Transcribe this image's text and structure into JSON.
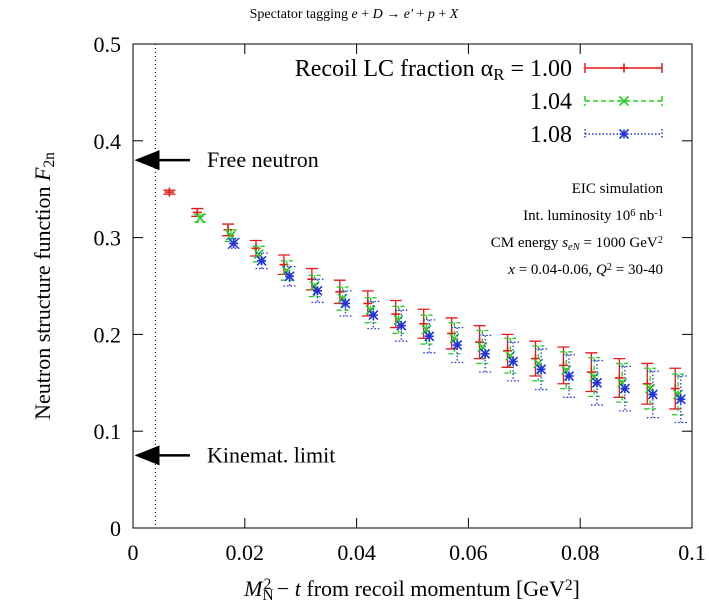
{
  "chart_data": {
    "type": "errorbar",
    "title": [
      {
        "t": "Spectator tagging "
      },
      {
        "t": "e",
        "s": "i"
      },
      {
        "t": " + "
      },
      {
        "t": "D",
        "s": "i"
      },
      {
        "t": " → "
      },
      {
        "t": "e'",
        "s": "i"
      },
      {
        "t": " + "
      },
      {
        "t": "p",
        "s": "i"
      },
      {
        "t": " + "
      },
      {
        "t": "X",
        "s": "i"
      }
    ],
    "x_label": [
      {
        "t": "M",
        "s": "i"
      },
      {
        "t": "N",
        "s": "sub"
      },
      {
        "t": "2",
        "s": "supback"
      },
      {
        "t": " − "
      },
      {
        "t": "t",
        "s": "i"
      },
      {
        "t": "   from recoil momentum   [GeV"
      },
      {
        "t": "2",
        "s": "sup"
      },
      {
        "t": "]"
      }
    ],
    "y_label": [
      {
        "t": "Neutron structure function  "
      },
      {
        "t": "F",
        "s": "i"
      },
      {
        "t": "2n",
        "s": "sub"
      }
    ],
    "legend_prefix": [
      {
        "t": "Recoil LC fraction  α"
      },
      {
        "t": "R",
        "s": "sub"
      },
      {
        "t": " = "
      }
    ],
    "xlim": [
      0,
      0.1
    ],
    "ylim": [
      0,
      0.5
    ],
    "xticks": [
      0,
      0.02,
      0.04,
      0.06,
      0.08,
      0.1
    ],
    "yticks": [
      0,
      0.1,
      0.2,
      0.3,
      0.4,
      0.5
    ],
    "series": [
      {
        "name": "1.00",
        "color": "#e41a1c",
        "marker": "plus",
        "dash": "solid",
        "x": [
          0.0065,
          0.0115,
          0.017,
          0.022,
          0.027,
          0.032,
          0.037,
          0.042,
          0.047,
          0.052,
          0.057,
          0.062,
          0.067,
          0.072,
          0.077,
          0.082,
          0.087,
          0.092,
          0.097
        ],
        "values": [
          0.347,
          0.326,
          0.308,
          0.289,
          0.272,
          0.257,
          0.244,
          0.232,
          0.221,
          0.211,
          0.201,
          0.192,
          0.183,
          0.175,
          0.168,
          0.161,
          0.155,
          0.149,
          0.144
        ],
        "errors": [
          0.002,
          0.004,
          0.006,
          0.008,
          0.01,
          0.011,
          0.012,
          0.013,
          0.014,
          0.015,
          0.016,
          0.017,
          0.017,
          0.018,
          0.019,
          0.02,
          0.02,
          0.021,
          0.021
        ]
      },
      {
        "name": "1.04",
        "color": "#22cc22",
        "marker": "cross",
        "dash": "dashed",
        "x": [
          0.012,
          0.0175,
          0.0225,
          0.0275,
          0.0325,
          0.0375,
          0.0425,
          0.0475,
          0.0525,
          0.0575,
          0.0625,
          0.0675,
          0.0725,
          0.0775,
          0.0825,
          0.0875,
          0.0925,
          0.0975
        ],
        "values": [
          0.32,
          0.302,
          0.283,
          0.266,
          0.25,
          0.237,
          0.225,
          0.215,
          0.205,
          0.196,
          0.187,
          0.178,
          0.17,
          0.163,
          0.156,
          0.15,
          0.144,
          0.138
        ],
        "errors": [
          0.004,
          0.006,
          0.008,
          0.01,
          0.011,
          0.012,
          0.013,
          0.014,
          0.015,
          0.016,
          0.017,
          0.018,
          0.018,
          0.019,
          0.02,
          0.02,
          0.021,
          0.021
        ]
      },
      {
        "name": "1.08",
        "color": "#2233dd",
        "marker": "star",
        "dash": "dotted",
        "x": [
          0.018,
          0.023,
          0.028,
          0.033,
          0.038,
          0.043,
          0.048,
          0.053,
          0.058,
          0.063,
          0.068,
          0.073,
          0.078,
          0.083,
          0.088,
          0.093,
          0.098
        ],
        "values": [
          0.294,
          0.276,
          0.26,
          0.245,
          0.232,
          0.22,
          0.209,
          0.198,
          0.189,
          0.18,
          0.172,
          0.164,
          0.157,
          0.15,
          0.144,
          0.138,
          0.133
        ],
        "errors": [
          0.005,
          0.008,
          0.01,
          0.012,
          0.013,
          0.014,
          0.016,
          0.017,
          0.018,
          0.019,
          0.02,
          0.021,
          0.022,
          0.023,
          0.023,
          0.024,
          0.024
        ]
      }
    ],
    "info": [
      [
        {
          "t": "EIC simulation"
        }
      ],
      [
        {
          "t": "Int. luminosity 10"
        },
        {
          "t": "6",
          "s": "sup"
        },
        {
          "t": " nb"
        },
        {
          "t": "-1",
          "s": "sup"
        }
      ],
      [
        {
          "t": "CM energy "
        },
        {
          "t": "s",
          "s": "i"
        },
        {
          "t": "eN",
          "s": "isub"
        },
        {
          "t": " = 1000 GeV"
        },
        {
          "t": "2",
          "s": "sup"
        }
      ],
      [
        {
          "t": "x",
          "s": "i"
        },
        {
          "t": " = 0.04-0.06,  "
        },
        {
          "t": "Q",
          "s": "i"
        },
        {
          "t": "2",
          "s": "sup"
        },
        {
          "t": " = 30-40"
        }
      ]
    ],
    "annotations": [
      {
        "text": "Free neutron",
        "y": 0.38
      },
      {
        "text": "Kinemat. limit",
        "y": 0.075
      }
    ],
    "limit_line_x": 0.004
  }
}
